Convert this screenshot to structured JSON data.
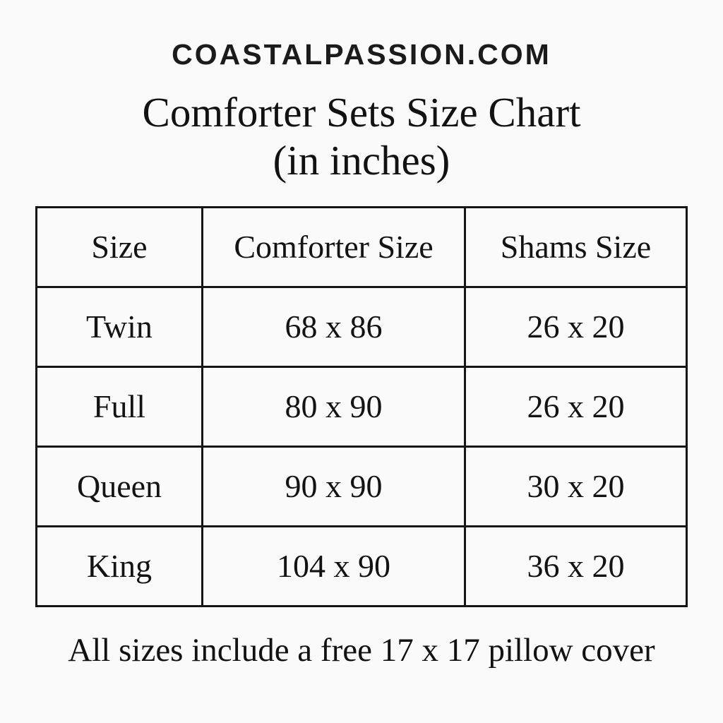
{
  "page": {
    "background": "#fbfafa",
    "text_color": "#141414"
  },
  "header": {
    "site_name": "COASTALPASSION.COM"
  },
  "title": {
    "line1": "Comforter Sets Size Chart",
    "line2": "(in inches)"
  },
  "table": {
    "columns": [
      "Size",
      "Comforter Size",
      "Shams Size"
    ],
    "rows": [
      [
        "Twin",
        "68 x 86",
        "26 x 20"
      ],
      [
        "Full",
        "80 x 90",
        "26 x 20"
      ],
      [
        "Queen",
        "90 x 90",
        "30 x 20"
      ],
      [
        "King",
        "104 x 90",
        "36 x 20"
      ]
    ]
  },
  "footer": {
    "note": "All sizes include a free 17 x 17 pillow cover"
  },
  "chart_data": {
    "type": "table",
    "title": "Comforter Sets Size Chart (in inches)",
    "source_label": "COASTALPASSION.COM",
    "columns": [
      "Size",
      "Comforter Size",
      "Shams Size"
    ],
    "rows": [
      {
        "size": "Twin",
        "comforter_size_in": "68 x 86",
        "shams_size_in": "26 x 20"
      },
      {
        "size": "Full",
        "comforter_size_in": "80 x 90",
        "shams_size_in": "26 x 20"
      },
      {
        "size": "Queen",
        "comforter_size_in": "90 x 90",
        "shams_size_in": "30 x 20"
      },
      {
        "size": "King",
        "comforter_size_in": "104 x 90",
        "shams_size_in": "36 x 20"
      }
    ],
    "note": "All sizes include a free 17 x 17 pillow cover"
  }
}
